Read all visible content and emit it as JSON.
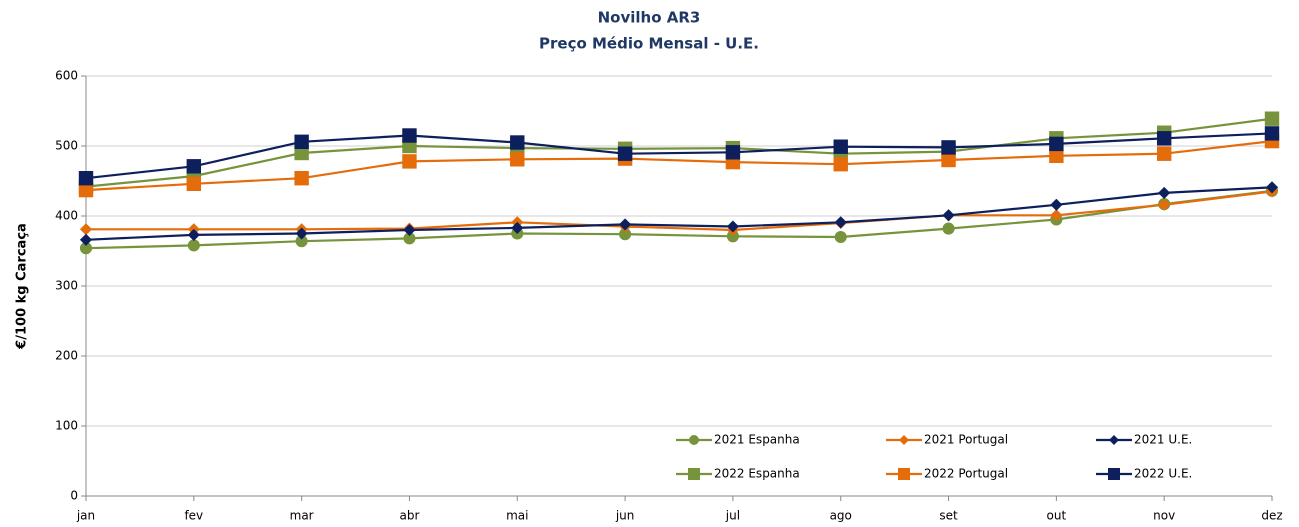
{
  "chart_data": {
    "type": "line",
    "title": "Novilho AR3",
    "subtitle": "Preço Médio Mensal - U.E.",
    "y_label": "€/100 kg  Carcaça",
    "categories": [
      "jan",
      "fev",
      "mar",
      "abr",
      "mai",
      "jun",
      "jul",
      "ago",
      "set",
      "out",
      "nov",
      "dez"
    ],
    "ylim": [
      0,
      600
    ],
    "yticks": [
      0,
      100,
      200,
      300,
      400,
      500,
      600
    ],
    "grid": true,
    "series": [
      {
        "name": "2021 Espanha",
        "color": "#77933c",
        "marker": "circle",
        "values": [
          354,
          358,
          364,
          368,
          375,
          374,
          371,
          370,
          382,
          395,
          417,
          436
        ]
      },
      {
        "name": "2021 Portugal",
        "color": "#e46c0a",
        "marker": "diamond",
        "values": [
          381,
          381,
          381,
          382,
          391,
          385,
          380,
          390,
          401,
          401,
          416,
          435
        ]
      },
      {
        "name": "2021 U.E.",
        "color": "#0d1f5c",
        "marker": "diamond",
        "values": [
          366,
          373,
          375,
          380,
          383,
          388,
          385,
          391,
          401,
          416,
          433,
          441
        ]
      },
      {
        "name": "2022 Espanha",
        "color": "#77933c",
        "marker": "square",
        "values": [
          442,
          457,
          490,
          500,
          497,
          496,
          497,
          489,
          492,
          511,
          519,
          539
        ]
      },
      {
        "name": "2022 Portugal",
        "color": "#e46c0a",
        "marker": "square",
        "values": [
          437,
          446,
          454,
          478,
          481,
          482,
          477,
          474,
          480,
          486,
          489,
          507
        ]
      },
      {
        "name": "2022 U.E.",
        "color": "#0d1f5c",
        "marker": "square",
        "values": [
          454,
          471,
          506,
          515,
          505,
          489,
          491,
          499,
          498,
          503,
          511,
          518
        ]
      }
    ]
  }
}
